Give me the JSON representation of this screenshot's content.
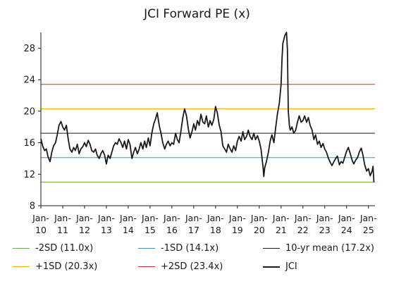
{
  "chart_data": {
    "type": "line",
    "title": "JCI Forward PE (x)",
    "xlabel": "",
    "ylabel": "",
    "ylim": [
      8,
      30
    ],
    "yticks": [
      8,
      12,
      16,
      20,
      24,
      28
    ],
    "xlim": [
      2010.0,
      2025.3
    ],
    "xticks": [
      {
        "year": 2010,
        "label": [
          "Jan-",
          "10"
        ]
      },
      {
        "year": 2011,
        "label": [
          "Jan-",
          "11"
        ]
      },
      {
        "year": 2012,
        "label": [
          "Jan-",
          "12"
        ]
      },
      {
        "year": 2013,
        "label": [
          "Jan-",
          "13"
        ]
      },
      {
        "year": 2014,
        "label": [
          "Jan-",
          "14"
        ]
      },
      {
        "year": 2015,
        "label": [
          "Jan-",
          "15"
        ]
      },
      {
        "year": 2016,
        "label": [
          "Jan-",
          "16"
        ]
      },
      {
        "year": 2017,
        "label": [
          "Jan-",
          "17"
        ]
      },
      {
        "year": 2018,
        "label": [
          "Jan-",
          "18"
        ]
      },
      {
        "year": 2019,
        "label": [
          "Jan-",
          "19"
        ]
      },
      {
        "year": 2020,
        "label": [
          "Jan-",
          "20"
        ]
      },
      {
        "year": 2021,
        "label": [
          "Jan-",
          "21"
        ]
      },
      {
        "year": 2022,
        "label": [
          "Jan-",
          "22"
        ]
      },
      {
        "year": 2023,
        "label": [
          "Jan-",
          "23"
        ]
      },
      {
        "year": 2024,
        "label": [
          "Jan-",
          "24"
        ]
      },
      {
        "year": 2025,
        "label": [
          "Jan-",
          "25"
        ]
      }
    ],
    "grid": false,
    "legend_position": "bottom",
    "reference_lines": [
      {
        "name": "-2SD (11.0x)",
        "value": 11.0,
        "color": "#6ab04c"
      },
      {
        "name": "-1SD (14.1x)",
        "value": 14.1,
        "color": "#3b8fd0"
      },
      {
        "name": "10-yr mean (17.2x)",
        "value": 17.2,
        "color": "#1a1a1a"
      },
      {
        "name": "+1SD (20.3x)",
        "value": 20.3,
        "color": "#f0b400"
      },
      {
        "name": "+2SD (23.4x)",
        "value": 23.4,
        "color": "#d0302a"
      }
    ],
    "series": [
      {
        "name": "JCI",
        "color": "#1a1a1a",
        "points": [
          [
            2010.0,
            16.5
          ],
          [
            2010.08,
            15.6
          ],
          [
            2010.17,
            15.0
          ],
          [
            2010.25,
            15.2
          ],
          [
            2010.33,
            14.2
          ],
          [
            2010.42,
            13.6
          ],
          [
            2010.5,
            14.8
          ],
          [
            2010.58,
            15.6
          ],
          [
            2010.67,
            16.0
          ],
          [
            2010.75,
            17.0
          ],
          [
            2010.83,
            18.2
          ],
          [
            2010.92,
            18.7
          ],
          [
            2011.0,
            18.0
          ],
          [
            2011.08,
            17.6
          ],
          [
            2011.17,
            18.2
          ],
          [
            2011.25,
            16.5
          ],
          [
            2011.33,
            15.2
          ],
          [
            2011.42,
            14.8
          ],
          [
            2011.5,
            15.4
          ],
          [
            2011.58,
            15.0
          ],
          [
            2011.67,
            15.8
          ],
          [
            2011.75,
            14.6
          ],
          [
            2011.83,
            15.2
          ],
          [
            2011.92,
            15.5
          ],
          [
            2012.0,
            16.0
          ],
          [
            2012.08,
            15.5
          ],
          [
            2012.17,
            16.3
          ],
          [
            2012.25,
            15.8
          ],
          [
            2012.33,
            15.0
          ],
          [
            2012.42,
            14.8
          ],
          [
            2012.5,
            15.2
          ],
          [
            2012.58,
            14.4
          ],
          [
            2012.67,
            14.0
          ],
          [
            2012.75,
            14.6
          ],
          [
            2012.83,
            15.0
          ],
          [
            2012.92,
            14.4
          ],
          [
            2013.0,
            13.3
          ],
          [
            2013.08,
            14.4
          ],
          [
            2013.17,
            14.0
          ],
          [
            2013.25,
            14.8
          ],
          [
            2013.33,
            15.6
          ],
          [
            2013.42,
            16.0
          ],
          [
            2013.5,
            15.8
          ],
          [
            2013.58,
            16.5
          ],
          [
            2013.67,
            16.0
          ],
          [
            2013.75,
            15.4
          ],
          [
            2013.83,
            16.2
          ],
          [
            2013.92,
            15.2
          ],
          [
            2014.0,
            16.4
          ],
          [
            2014.08,
            15.8
          ],
          [
            2014.17,
            14.0
          ],
          [
            2014.25,
            14.8
          ],
          [
            2014.33,
            15.4
          ],
          [
            2014.42,
            14.6
          ],
          [
            2014.5,
            15.2
          ],
          [
            2014.58,
            16.0
          ],
          [
            2014.67,
            15.2
          ],
          [
            2014.75,
            16.2
          ],
          [
            2014.83,
            15.4
          ],
          [
            2014.92,
            16.6
          ],
          [
            2015.0,
            15.6
          ],
          [
            2015.08,
            17.2
          ],
          [
            2015.17,
            18.4
          ],
          [
            2015.25,
            19.0
          ],
          [
            2015.33,
            19.8
          ],
          [
            2015.42,
            18.2
          ],
          [
            2015.5,
            17.2
          ],
          [
            2015.58,
            16.0
          ],
          [
            2015.67,
            15.2
          ],
          [
            2015.75,
            15.8
          ],
          [
            2015.83,
            16.2
          ],
          [
            2015.92,
            15.6
          ],
          [
            2016.0,
            16.0
          ],
          [
            2016.08,
            15.8
          ],
          [
            2016.17,
            17.2
          ],
          [
            2016.25,
            16.4
          ],
          [
            2016.33,
            16.0
          ],
          [
            2016.42,
            17.6
          ],
          [
            2016.5,
            19.2
          ],
          [
            2016.58,
            20.3
          ],
          [
            2016.67,
            19.4
          ],
          [
            2016.75,
            17.8
          ],
          [
            2016.83,
            16.6
          ],
          [
            2016.92,
            17.4
          ],
          [
            2017.0,
            18.4
          ],
          [
            2017.08,
            17.6
          ],
          [
            2017.17,
            18.8
          ],
          [
            2017.25,
            18.2
          ],
          [
            2017.33,
            19.6
          ],
          [
            2017.42,
            18.6
          ],
          [
            2017.5,
            18.4
          ],
          [
            2017.58,
            19.4
          ],
          [
            2017.67,
            18.0
          ],
          [
            2017.75,
            18.8
          ],
          [
            2017.83,
            18.2
          ],
          [
            2017.92,
            19.0
          ],
          [
            2018.0,
            20.6
          ],
          [
            2018.08,
            19.8
          ],
          [
            2018.17,
            18.2
          ],
          [
            2018.25,
            17.4
          ],
          [
            2018.33,
            15.6
          ],
          [
            2018.42,
            15.2
          ],
          [
            2018.5,
            14.8
          ],
          [
            2018.58,
            15.8
          ],
          [
            2018.67,
            15.2
          ],
          [
            2018.75,
            14.8
          ],
          [
            2018.83,
            15.6
          ],
          [
            2018.92,
            15.0
          ],
          [
            2019.0,
            16.2
          ],
          [
            2019.08,
            16.8
          ],
          [
            2019.17,
            16.2
          ],
          [
            2019.25,
            17.4
          ],
          [
            2019.33,
            16.4
          ],
          [
            2019.42,
            16.8
          ],
          [
            2019.5,
            17.6
          ],
          [
            2019.58,
            16.8
          ],
          [
            2019.67,
            16.4
          ],
          [
            2019.75,
            17.2
          ],
          [
            2019.83,
            16.4
          ],
          [
            2019.92,
            16.9
          ],
          [
            2020.0,
            16.2
          ],
          [
            2020.08,
            15.2
          ],
          [
            2020.17,
            13.0
          ],
          [
            2020.21,
            11.7
          ],
          [
            2020.25,
            12.8
          ],
          [
            2020.33,
            13.6
          ],
          [
            2020.42,
            14.8
          ],
          [
            2020.5,
            16.2
          ],
          [
            2020.58,
            17.0
          ],
          [
            2020.67,
            16.0
          ],
          [
            2020.75,
            17.8
          ],
          [
            2020.83,
            19.6
          ],
          [
            2020.92,
            21.0
          ],
          [
            2021.0,
            23.4
          ],
          [
            2021.04,
            26.4
          ],
          [
            2021.08,
            28.6
          ],
          [
            2021.17,
            29.6
          ],
          [
            2021.25,
            30.0
          ],
          [
            2021.29,
            27.8
          ],
          [
            2021.33,
            20.0
          ],
          [
            2021.38,
            18.2
          ],
          [
            2021.42,
            17.6
          ],
          [
            2021.5,
            18.0
          ],
          [
            2021.58,
            17.2
          ],
          [
            2021.67,
            17.6
          ],
          [
            2021.75,
            18.6
          ],
          [
            2021.83,
            19.4
          ],
          [
            2021.92,
            18.6
          ],
          [
            2022.0,
            18.8
          ],
          [
            2022.08,
            19.4
          ],
          [
            2022.17,
            18.6
          ],
          [
            2022.25,
            19.2
          ],
          [
            2022.33,
            18.2
          ],
          [
            2022.42,
            17.6
          ],
          [
            2022.5,
            16.4
          ],
          [
            2022.58,
            17.0
          ],
          [
            2022.67,
            15.8
          ],
          [
            2022.75,
            16.2
          ],
          [
            2022.83,
            15.4
          ],
          [
            2022.92,
            15.9
          ],
          [
            2023.0,
            15.2
          ],
          [
            2023.08,
            14.8
          ],
          [
            2023.17,
            14.0
          ],
          [
            2023.25,
            13.5
          ],
          [
            2023.33,
            13.1
          ],
          [
            2023.42,
            13.6
          ],
          [
            2023.5,
            14.0
          ],
          [
            2023.58,
            14.3
          ],
          [
            2023.67,
            13.2
          ],
          [
            2023.75,
            13.6
          ],
          [
            2023.83,
            13.4
          ],
          [
            2023.92,
            14.2
          ],
          [
            2024.0,
            14.9
          ],
          [
            2024.08,
            15.4
          ],
          [
            2024.17,
            14.6
          ],
          [
            2024.25,
            13.8
          ],
          [
            2024.33,
            13.3
          ],
          [
            2024.42,
            13.8
          ],
          [
            2024.5,
            14.1
          ],
          [
            2024.58,
            14.8
          ],
          [
            2024.67,
            15.3
          ],
          [
            2024.75,
            14.4
          ],
          [
            2024.83,
            13.2
          ],
          [
            2024.92,
            12.4
          ],
          [
            2025.0,
            12.7
          ],
          [
            2025.08,
            11.8
          ],
          [
            2025.17,
            12.4
          ],
          [
            2025.21,
            13.0
          ],
          [
            2025.25,
            11.0
          ]
        ]
      }
    ]
  },
  "legend": {
    "items": [
      {
        "label": "-2SD (11.0x)",
        "color": "#6ab04c",
        "thickness": "thin"
      },
      {
        "label": "-1SD (14.1x)",
        "color": "#3b8fd0",
        "thickness": "thin"
      },
      {
        "label": "10-yr mean (17.2x)",
        "color": "#1a1a1a",
        "thickness": "thin"
      },
      {
        "label": "+1SD (20.3x)",
        "color": "#f0b400",
        "thickness": "thin"
      },
      {
        "label": "+2SD (23.4x)",
        "color": "#d0302a",
        "thickness": "thin"
      },
      {
        "label": "JCI",
        "color": "#1a1a1a",
        "thickness": "thick"
      }
    ]
  }
}
